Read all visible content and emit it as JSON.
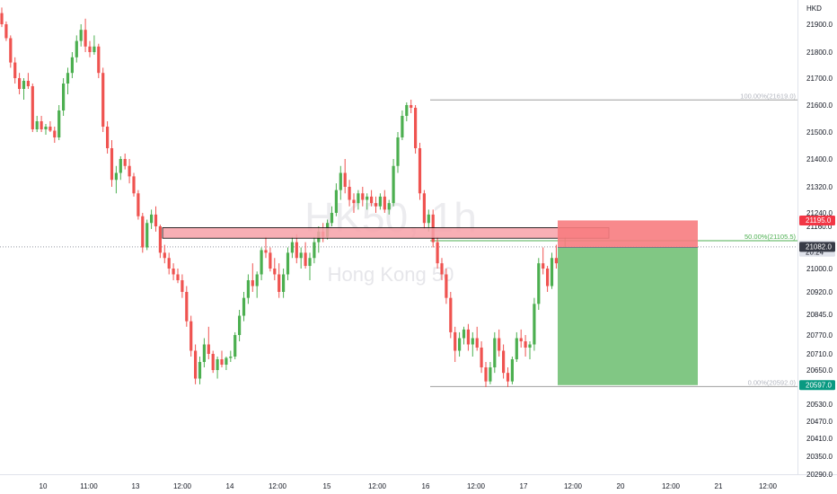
{
  "currency": "HKD",
  "watermark": {
    "symbol": "HK50, 1h",
    "name": "Hong Kong 50"
  },
  "colors": {
    "up": "#26a69a",
    "up_candle": "#4caf50",
    "down": "#ef5350",
    "zone": "#f7a1a8",
    "stop": "#f77c80",
    "target": "#81c784",
    "fib": "#9e9e9e"
  },
  "chart_data": {
    "type": "candlestick",
    "y_ticks": [
      "21900.0",
      "21800.0",
      "21700.0",
      "21600.0",
      "21500.0",
      "21400.0",
      "21320.0",
      "21240.0",
      "21160.0",
      "21000.0",
      "20920.0",
      "20845.0",
      "20770.0",
      "20710.0",
      "20650.0",
      "20530.0",
      "20470.0",
      "20410.0",
      "20350.0",
      "20290.0"
    ],
    "x_ticks": [
      "10",
      "11:00",
      "13",
      "12:00",
      "14",
      "12:00",
      "15",
      "12:00",
      "16",
      "12:00",
      "17",
      "12:00",
      "20",
      "12:00",
      "21",
      "12:00"
    ],
    "fib_levels": [
      {
        "label": "100.00%(21619.0)",
        "value": 21619.0
      },
      {
        "label": "50.00%(21105.5)",
        "value": 21105.5
      },
      {
        "label": "0.00%(20592.0)",
        "value": 20592.0
      }
    ],
    "price_tags": [
      {
        "label": "21195.0",
        "value": 21195.0,
        "color": "#f23645"
      },
      {
        "label": "21086.0",
        "sub": "20:24",
        "value": 21086.0,
        "color": "#e0e3eb"
      },
      {
        "label": "21082.0",
        "value": 21082.0,
        "color": "#363a45"
      },
      {
        "label": "20597.0",
        "value": 20597.0,
        "color": "#089981"
      }
    ],
    "zone": {
      "top": 21155,
      "bottom": 21115
    },
    "position": {
      "entry": 21080,
      "stop": 21195,
      "target": 20597
    },
    "candles": [
      [
        21940,
        21960,
        21890,
        21900
      ],
      [
        21900,
        21910,
        21840,
        21850
      ],
      [
        21850,
        21860,
        21740,
        21760
      ],
      [
        21760,
        21780,
        21680,
        21700
      ],
      [
        21700,
        21720,
        21640,
        21660
      ],
      [
        21660,
        21700,
        21620,
        21690
      ],
      [
        21690,
        21720,
        21660,
        21670
      ],
      [
        21670,
        21680,
        21500,
        21510
      ],
      [
        21510,
        21560,
        21500,
        21540
      ],
      [
        21540,
        21560,
        21500,
        21510
      ],
      [
        21510,
        21530,
        21490,
        21520
      ],
      [
        21520,
        21540,
        21500,
        21505
      ],
      [
        21505,
        21520,
        21460,
        21480
      ],
      [
        21480,
        21600,
        21470,
        21580
      ],
      [
        21580,
        21700,
        21560,
        21680
      ],
      [
        21680,
        21740,
        21640,
        21720
      ],
      [
        21720,
        21800,
        21700,
        21780
      ],
      [
        21780,
        21860,
        21760,
        21840
      ],
      [
        21840,
        21900,
        21820,
        21880
      ],
      [
        21880,
        21920,
        21800,
        21820
      ],
      [
        21820,
        21840,
        21780,
        21800
      ],
      [
        21800,
        21860,
        21790,
        21820
      ],
      [
        21820,
        21830,
        21700,
        21720
      ],
      [
        21720,
        21740,
        21500,
        21520
      ],
      [
        21520,
        21540,
        21420,
        21440
      ],
      [
        21440,
        21470,
        21320,
        21340
      ],
      [
        21340,
        21380,
        21300,
        21360
      ],
      [
        21360,
        21410,
        21340,
        21400
      ],
      [
        21400,
        21420,
        21370,
        21380
      ],
      [
        21380,
        21400,
        21330,
        21350
      ],
      [
        21350,
        21360,
        21290,
        21300
      ],
      [
        21300,
        21310,
        21200,
        21220
      ],
      [
        21220,
        21240,
        21060,
        21080
      ],
      [
        21080,
        21200,
        21070,
        21180
      ],
      [
        21180,
        21250,
        21150,
        21230
      ],
      [
        21230,
        21260,
        21140,
        21160
      ],
      [
        21160,
        21170,
        21040,
        21060
      ],
      [
        21060,
        21090,
        21020,
        21040
      ],
      [
        21040,
        21060,
        20980,
        21000
      ],
      [
        21000,
        21020,
        20960,
        20980
      ],
      [
        20980,
        21000,
        20950,
        20960
      ],
      [
        20960,
        20980,
        20900,
        20920
      ],
      [
        20920,
        20940,
        20800,
        20820
      ],
      [
        20820,
        20840,
        20700,
        20720
      ],
      [
        20720,
        20740,
        20600,
        20620
      ],
      [
        20620,
        20700,
        20600,
        20680
      ],
      [
        20680,
        20760,
        20660,
        20740
      ],
      [
        20740,
        20800,
        20690,
        20710
      ],
      [
        20710,
        20720,
        20640,
        20650
      ],
      [
        20650,
        20700,
        20620,
        20690
      ],
      [
        20690,
        20720,
        20660,
        20670
      ],
      [
        20670,
        20700,
        20650,
        20695
      ],
      [
        20695,
        20720,
        20680,
        20700
      ],
      [
        20700,
        20780,
        20690,
        20770
      ],
      [
        20770,
        20860,
        20750,
        20840
      ],
      [
        20840,
        20920,
        20820,
        20900
      ],
      [
        20900,
        20980,
        20880,
        20960
      ],
      [
        20960,
        21020,
        20920,
        20940
      ],
      [
        20940,
        20990,
        20900,
        20980
      ],
      [
        20980,
        21080,
        20960,
        21070
      ],
      [
        21070,
        21120,
        21040,
        21060
      ],
      [
        21060,
        21080,
        20990,
        21000
      ],
      [
        21000,
        21040,
        20960,
        20980
      ],
      [
        20980,
        21020,
        20900,
        20920
      ],
      [
        20920,
        21000,
        20900,
        20980
      ],
      [
        20980,
        21080,
        20960,
        21060
      ],
      [
        21060,
        21120,
        21040,
        21100
      ],
      [
        21100,
        21130,
        21020,
        21040
      ],
      [
        21040,
        21080,
        21000,
        21060
      ],
      [
        21060,
        21100,
        21000,
        21010
      ],
      [
        21010,
        21060,
        20960,
        21040
      ],
      [
        21040,
        21120,
        21020,
        21100
      ],
      [
        21100,
        21160,
        21060,
        21140
      ],
      [
        21140,
        21180,
        21100,
        21120
      ],
      [
        21120,
        21200,
        21110,
        21180
      ],
      [
        21180,
        21260,
        21160,
        21240
      ],
      [
        21240,
        21330,
        21220,
        21310
      ],
      [
        21310,
        21380,
        21280,
        21360
      ],
      [
        21360,
        21400,
        21300,
        21320
      ],
      [
        21320,
        21340,
        21260,
        21280
      ],
      [
        21280,
        21300,
        21240,
        21270
      ],
      [
        21270,
        21310,
        21250,
        21300
      ],
      [
        21300,
        21320,
        21260,
        21280
      ],
      [
        21280,
        21300,
        21250,
        21290
      ],
      [
        21290,
        21310,
        21260,
        21270
      ],
      [
        21270,
        21290,
        21240,
        21260
      ],
      [
        21260,
        21300,
        21250,
        21290
      ],
      [
        21290,
        21310,
        21240,
        21250
      ],
      [
        21250,
        21280,
        21230,
        21270
      ],
      [
        21270,
        21400,
        21260,
        21380
      ],
      [
        21380,
        21500,
        21360,
        21480
      ],
      [
        21480,
        21580,
        21470,
        21560
      ],
      [
        21560,
        21610,
        21540,
        21600
      ],
      [
        21600,
        21620,
        21570,
        21590
      ],
      [
        21590,
        21600,
        21420,
        21440
      ],
      [
        21440,
        21460,
        21280,
        21300
      ],
      [
        21300,
        21310,
        21150,
        21180
      ],
      [
        21180,
        21250,
        21140,
        21230
      ],
      [
        21230,
        21250,
        21080,
        21100
      ],
      [
        21100,
        21120,
        21000,
        21020
      ],
      [
        21020,
        21040,
        20960,
        20980
      ],
      [
        20980,
        21000,
        20880,
        20900
      ],
      [
        20900,
        20920,
        20760,
        20780
      ],
      [
        20780,
        20800,
        20680,
        20720
      ],
      [
        20720,
        20780,
        20700,
        20760
      ],
      [
        20760,
        20800,
        20740,
        20790
      ],
      [
        20790,
        20810,
        20720,
        20740
      ],
      [
        20740,
        20780,
        20700,
        20760
      ],
      [
        20760,
        20800,
        20720,
        20730
      ],
      [
        20730,
        20750,
        20640,
        20660
      ],
      [
        20660,
        20680,
        20590,
        20610
      ],
      [
        20610,
        20680,
        20600,
        20660
      ],
      [
        20660,
        20780,
        20640,
        20760
      ],
      [
        20760,
        20790,
        20700,
        20720
      ],
      [
        20720,
        20740,
        20620,
        20640
      ],
      [
        20640,
        20660,
        20590,
        20610
      ],
      [
        20610,
        20700,
        20600,
        20690
      ],
      [
        20690,
        20780,
        20680,
        20760
      ],
      [
        20760,
        20790,
        20730,
        20750
      ],
      [
        20750,
        20770,
        20700,
        20730
      ],
      [
        20730,
        20750,
        20690,
        20740
      ],
      [
        20740,
        20900,
        20720,
        20880
      ],
      [
        20880,
        21040,
        20860,
        21020
      ],
      [
        21020,
        21080,
        20980,
        21000
      ],
      [
        21000,
        21010,
        20920,
        20940
      ],
      [
        20940,
        21060,
        20930,
        21040
      ],
      [
        21040,
        21090,
        21000,
        21020
      ],
      [
        21020,
        21080,
        21010,
        21060
      ],
      [
        21060,
        21120,
        21040,
        21082
      ]
    ]
  }
}
